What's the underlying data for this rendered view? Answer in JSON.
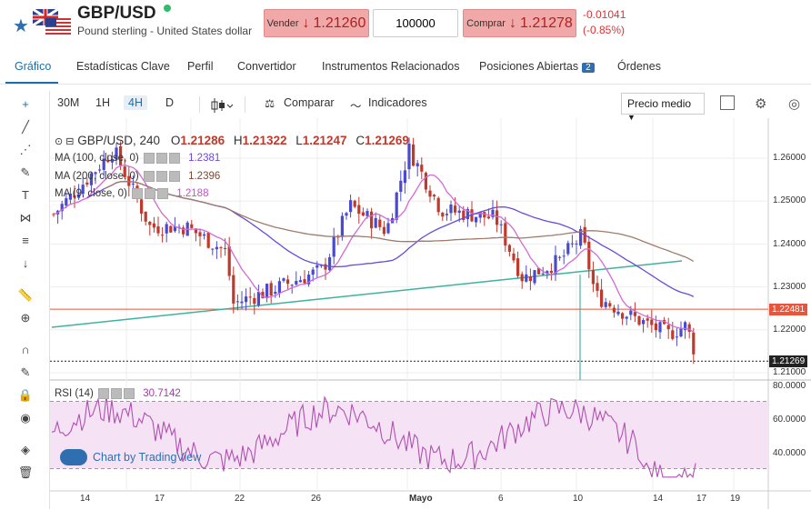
{
  "header": {
    "pair": "GBP/USD",
    "pair_desc": "Pound sterling - United States dollar",
    "sell_label": "Vender",
    "sell_arrow": "↓",
    "sell_price": "1.21260",
    "quantity": "100000",
    "buy_label": "Comprar",
    "buy_arrow": "↓",
    "buy_price": "1.21278",
    "change_abs": "-0.01041",
    "change_pct": "(-0.85%)"
  },
  "tabs": [
    "Gráfico",
    "Estadísticas Clave",
    "Perfil",
    "Convertidor",
    "Instrumentos Relacionados",
    "Posiciones Abiertas",
    "Órdenes"
  ],
  "tab_badge": "2",
  "toolbar": {
    "intervals": [
      "30M",
      "1H",
      "4H",
      "D"
    ],
    "selected": "4H",
    "compare": "Comparar",
    "indicators": "Indicadores",
    "price_mode": "Precio medio"
  },
  "legend": {
    "title": "GBP/USD, 240",
    "o_label": "O",
    "o": "1.21286",
    "h_label": "H",
    "h": "1.21322",
    "l_label": "L",
    "l": "1.21247",
    "c_label": "C",
    "c": "1.21269",
    "ma100": "MA (100, close, 0)",
    "ma100_val": "1.2381",
    "ma200": "MA (200, close, 0)",
    "ma200_val": "1.2396",
    "ma9": "MA (9, close, 0)",
    "ma9_val": "1.2188",
    "rsi": "RSI (14)",
    "rsi_val": "30.7142"
  },
  "price_axis": [
    "1.26000",
    "1.25000",
    "1.24000",
    "1.23000",
    "1.22000",
    "1.21000"
  ],
  "price_tags": {
    "hline": "1.22481",
    "last": "1.21269"
  },
  "rsi_axis": [
    "80.0000",
    "60.0000",
    "40.0000"
  ],
  "time_axis": [
    "14",
    "17",
    "22",
    "26",
    "Mayo",
    "6",
    "10",
    "14",
    "17",
    "19"
  ],
  "watermark": "Chart by TradingView",
  "colors": {
    "accent": "#1c6fa8",
    "down": "#c0392b",
    "up": "#4a4ad0",
    "ma9": "#d36ad3",
    "ma100": "#6b4ad8",
    "ma200": "#a07a6a"
  }
}
